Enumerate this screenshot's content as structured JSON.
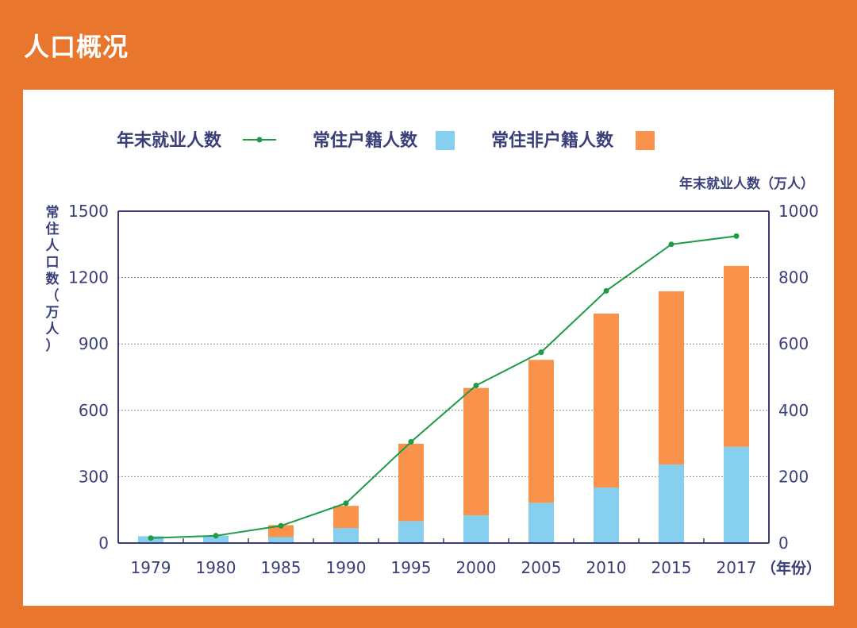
{
  "page": {
    "title": "人口概况"
  },
  "colors": {
    "background": "#E8762C",
    "employment_line": "#1E9B47",
    "registered": "#86CFEF",
    "non_registered": "#F9924A",
    "axis": "#3A3F7A",
    "text": "#3A3F7A"
  },
  "chart_data": {
    "type": "bar",
    "stacked": true,
    "categories": [
      "1979",
      "1980",
      "1985",
      "1990",
      "1995",
      "2000",
      "2005",
      "2010",
      "2015",
      "2017"
    ],
    "series": [
      {
        "name": "常住户籍人数",
        "axis": "left",
        "type": "bar",
        "values": [
          31,
          33,
          27,
          68,
          99,
          125,
          182,
          251,
          355,
          435
        ]
      },
      {
        "name": "常住非户籍人数",
        "axis": "left",
        "type": "bar",
        "values": [
          0,
          1,
          54,
          100,
          350,
          576,
          646,
          786,
          783,
          818
        ]
      },
      {
        "name": "年末就业人数",
        "axis": "right",
        "type": "line",
        "values": [
          15,
          22,
          52,
          120,
          305,
          475,
          575,
          760,
          900,
          925
        ]
      }
    ],
    "legend": [
      "年末就业人数",
      "常住户籍人数",
      "常住非户籍人数"
    ],
    "legend_position": "top",
    "y_left": {
      "label": "常住人口数（万人）",
      "ticks": [
        "0",
        "300",
        "600",
        "900",
        "1200",
        "1500"
      ],
      "lim": [
        0,
        1500
      ]
    },
    "y_right": {
      "label": "年末就业人数（万人）",
      "ticks": [
        "0",
        "200",
        "400",
        "600",
        "800",
        "1000"
      ],
      "lim": [
        0,
        1000
      ]
    },
    "x_unit": "（年份）",
    "grid": "horizontal-dotted"
  }
}
